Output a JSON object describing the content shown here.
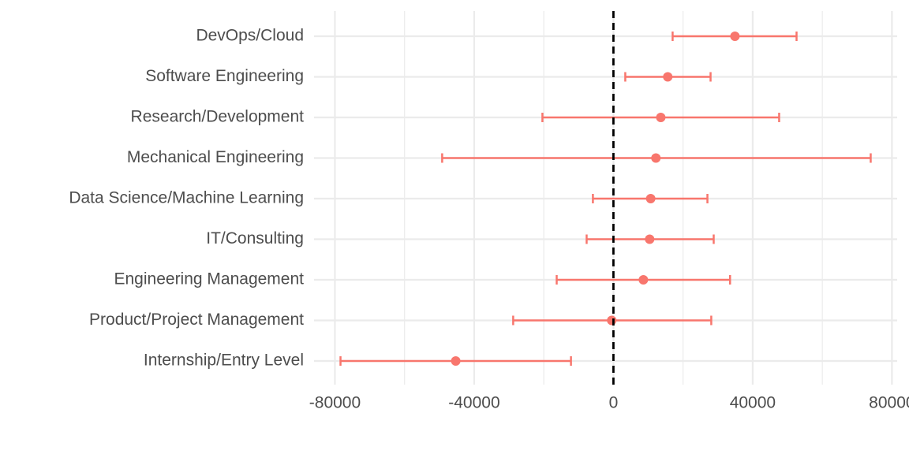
{
  "chart_data": {
    "type": "errorbar",
    "categories": [
      "DevOps/Cloud",
      "Software Engineering",
      "Research/Development",
      "Mechanical Engineering",
      "Data Science/Machine Learning",
      "IT/Consulting",
      "Engineering Management",
      "Product/Project Management",
      "Internship/Entry Level"
    ],
    "values": [
      34900,
      15600,
      13600,
      12200,
      10700,
      10400,
      8600,
      -500,
      -45300
    ],
    "lower": [
      17000,
      3400,
      -20400,
      -49200,
      -5900,
      -7700,
      -16300,
      -28800,
      -78400
    ],
    "upper": [
      52600,
      27900,
      47600,
      73900,
      27000,
      28800,
      33500,
      28100,
      -12200
    ],
    "color": "#f8766d",
    "reference_line": 0,
    "xlim": [
      -86000,
      81500
    ],
    "xticks": [
      -80000,
      -40000,
      0,
      40000,
      80000
    ],
    "grid": true
  }
}
